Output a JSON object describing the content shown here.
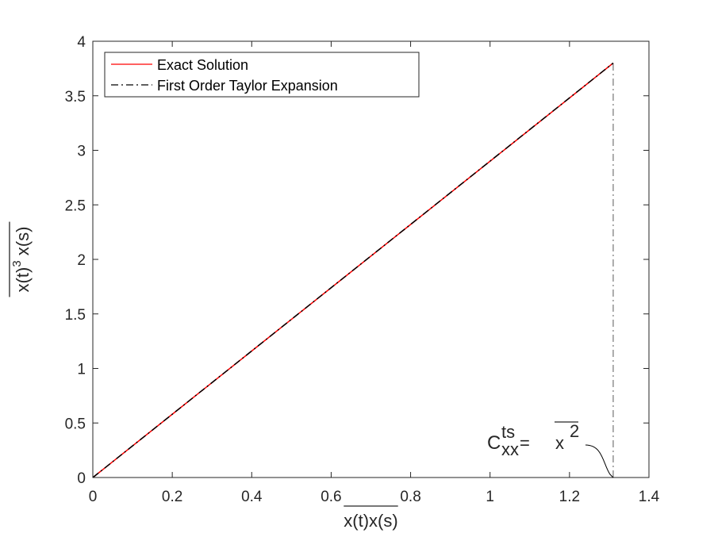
{
  "chart_data": {
    "type": "line",
    "xlabel": "x(t)x(s)",
    "ylabel": "x(t)",
    "ylabel_sup": "3",
    "ylabel_tail": " x(s)",
    "xlim": [
      0,
      1.4
    ],
    "ylim": [
      0,
      4
    ],
    "xticks": [
      "0",
      "0.2",
      "0.4",
      "0.6",
      "0.8",
      "1",
      "1.2",
      "1.4"
    ],
    "xtick_values": [
      0,
      0.2,
      0.4,
      0.6,
      0.8,
      1.0,
      1.2,
      1.4
    ],
    "yticks": [
      "0",
      "0.5",
      "1",
      "1.5",
      "2",
      "2.5",
      "3",
      "3.5",
      "4"
    ],
    "ytick_values": [
      0,
      0.5,
      1,
      1.5,
      2,
      2.5,
      3,
      3.5,
      4
    ],
    "grid": false,
    "legend_position": "top-left",
    "series": [
      {
        "name": "Exact Solution",
        "color": "#ff0000",
        "style": "solid",
        "x": [
          0,
          0.2,
          0.4,
          0.6,
          0.8,
          1.0,
          1.2,
          1.31
        ],
        "y": [
          0,
          0.58,
          1.16,
          1.74,
          2.32,
          2.9,
          3.48,
          3.8
        ]
      },
      {
        "name": "First Order Taylor Expansion",
        "color": "#000000",
        "style": "dashdot",
        "x": [
          0,
          1.31
        ],
        "y": [
          0,
          3.8
        ]
      }
    ],
    "reference_line": {
      "x": 1.31,
      "y_range": [
        0,
        3.8
      ],
      "color": "#808080",
      "style": "dashdot"
    },
    "annotation": {
      "base": "C",
      "sup": "ts",
      "sub": "xx",
      "equals": "=",
      "rhs": "x",
      "rhs_sup": "2",
      "points_to_x": 1.31,
      "points_to_y": 0
    }
  }
}
